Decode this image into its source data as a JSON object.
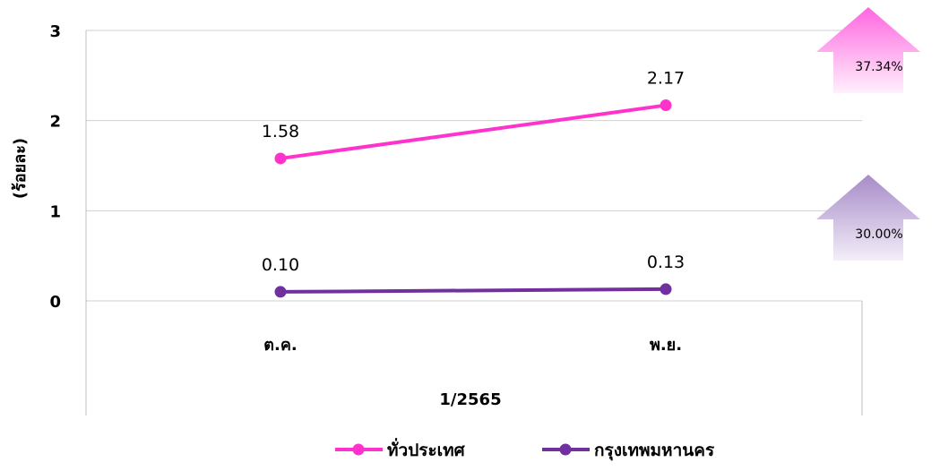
{
  "chart_data": {
    "type": "line",
    "title": "",
    "xlabel": "1/2565",
    "ylabel": "(ร้อยละ)",
    "categories": [
      "ต.ค.",
      "พ.ย."
    ],
    "ylim": [
      0,
      3
    ],
    "yticks": [
      "0",
      "1",
      "2",
      "3"
    ],
    "grid": true,
    "legend_position": "bottom",
    "series": [
      {
        "name": "ทั่วประเทศ",
        "values": [
          1.58,
          2.17
        ],
        "labels": [
          "1.58",
          "2.17"
        ],
        "color": "#FF33CC"
      },
      {
        "name": "กรุงเทพมหานคร",
        "values": [
          0.1,
          0.13
        ],
        "labels": [
          "0.10",
          "0.13"
        ],
        "color": "#7030A0"
      }
    ],
    "annotations": [
      {
        "text": "37.34%",
        "direction": "up",
        "series": "ทั่วประเทศ",
        "color": "#FF66E0"
      },
      {
        "text": "30.00%",
        "direction": "up",
        "series": "กรุงเทพมหานคร",
        "color": "#A78BC8"
      }
    ]
  }
}
